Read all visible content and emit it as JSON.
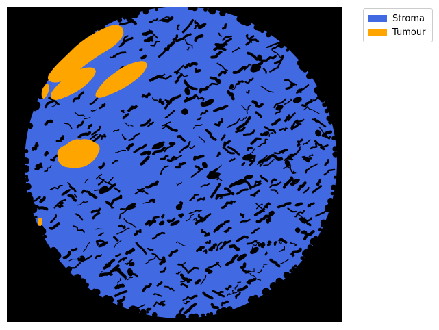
{
  "legend": {
    "position": "upper-right-outside",
    "items": [
      {
        "label": "Stroma",
        "color": "#4169e1"
      },
      {
        "label": "Tumour",
        "color": "#ffa500"
      }
    ]
  },
  "image": {
    "background_color": "#000000",
    "tissue_shape": "circular tissue core",
    "classes": [
      "stroma",
      "tumour"
    ]
  }
}
